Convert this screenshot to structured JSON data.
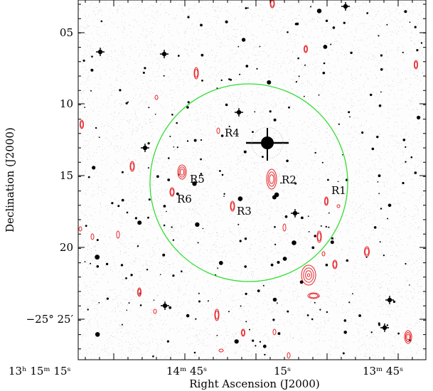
{
  "figure": {
    "xlabel": "Right Ascension (J2000)",
    "ylabel": "Declination (J2000)",
    "dec_ticks": [
      {
        "label": "05",
        "value": 5
      },
      {
        "label": "10",
        "value": 10
      },
      {
        "label": "15",
        "value": 15
      },
      {
        "label": "20",
        "value": 20
      },
      {
        "label": "−25° 25′",
        "value": 25
      }
    ],
    "ra_ticks": [
      {
        "label": "13ʰ 15ᵐ 15ˢ",
        "value": 15
      },
      {
        "label": "14ᵐ 45ˢ",
        "value": 45
      },
      {
        "label": "15ˢ",
        "value": 75
      },
      {
        "label": "13ᵐ 45ˢ",
        "value": 105
      }
    ],
    "circle_color": "#33dd33",
    "contour_color": "#e8262b",
    "regions": [
      {
        "name": "R1",
        "ra_s": 100,
        "dec_min": 16.2
      },
      {
        "name": "R2",
        "ra_s": 76,
        "dec_min": 15.4
      },
      {
        "name": "R3",
        "ra_s": 59,
        "dec_min": 17.5
      },
      {
        "name": "R4",
        "ra_s": 58,
        "dec_min": 12.0
      },
      {
        "name": "R5",
        "ra_s": 35,
        "dec_min": 15.1
      },
      {
        "name": "R6",
        "ra_s": 34,
        "dec_min": 16.6
      }
    ]
  }
}
